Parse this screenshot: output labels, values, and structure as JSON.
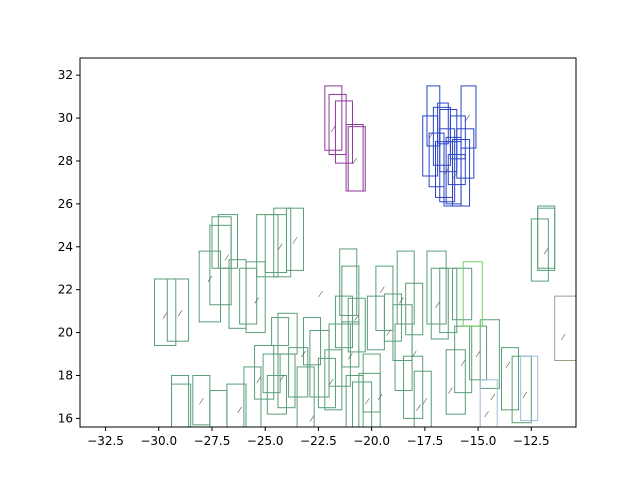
{
  "chart_data": {
    "type": "scatter",
    "title": "",
    "xlabel": "",
    "ylabel": "",
    "xlim": [
      -33.7,
      -10.4
    ],
    "ylim": [
      15.6,
      32.8
    ],
    "grid": false,
    "x_ticks": [
      -32.5,
      -30.0,
      -27.5,
      -25.0,
      -22.5,
      -20.0,
      -17.5,
      -15.0,
      -12.5
    ],
    "x_tick_labels": [
      "−32.5",
      "−30.0",
      "−27.5",
      "−25.0",
      "−22.5",
      "−20.0",
      "−17.5",
      "−15.0",
      "−12.5"
    ],
    "y_ticks": [
      16,
      18,
      20,
      22,
      24,
      26,
      28,
      30,
      32
    ],
    "y_tick_labels": [
      "16",
      "18",
      "20",
      "22",
      "24",
      "26",
      "28",
      "30",
      "32"
    ],
    "colors": {
      "green": "#5a9e78",
      "purple": "#8e3a9a",
      "blue": "#2b45c8",
      "lightblue": "#9fbcdc",
      "lime": "#6fd35a",
      "gray": "#9aa088",
      "stroke": "#555555"
    },
    "series": [
      {
        "color": "green",
        "boxes": [
          [
            -30.2,
            19.4,
            -29.2,
            22.5
          ],
          [
            -29.6,
            19.6,
            -28.6,
            22.5
          ],
          [
            -28.1,
            20.5,
            -27.1,
            23.8
          ],
          [
            -27.6,
            21.3,
            -26.6,
            25.0
          ],
          [
            -27.2,
            23.0,
            -26.3,
            25.5
          ],
          [
            -27.5,
            23.0,
            -26.6,
            25.4
          ],
          [
            -26.7,
            20.2,
            -25.9,
            23.4
          ],
          [
            -26.2,
            20.4,
            -25.4,
            23.0
          ],
          [
            -25.9,
            20.0,
            -25.0,
            23.3
          ],
          [
            -25.4,
            22.6,
            -24.4,
            25.5
          ],
          [
            -25.0,
            22.8,
            -24.0,
            25.5
          ],
          [
            -24.6,
            22.6,
            -23.8,
            25.8
          ],
          [
            -24.0,
            22.9,
            -23.2,
            25.8
          ],
          [
            -24.9,
            16.2,
            -24.0,
            18.0
          ],
          [
            -24.7,
            19.4,
            -23.9,
            20.7
          ],
          [
            -24.4,
            16.5,
            -23.6,
            19.0
          ],
          [
            -24.4,
            19.0,
            -23.5,
            20.9
          ],
          [
            -23.9,
            17.0,
            -23.0,
            19.3
          ],
          [
            -23.5,
            15.6,
            -22.7,
            18.4
          ],
          [
            -23.2,
            18.5,
            -22.4,
            20.7
          ],
          [
            -22.9,
            17.0,
            -22.0,
            20.1
          ],
          [
            -22.5,
            16.5,
            -21.7,
            18.8
          ],
          [
            -22.2,
            16.4,
            -21.4,
            19.2
          ],
          [
            -22.0,
            17.5,
            -21.0,
            20.4
          ],
          [
            -21.7,
            19.3,
            -20.9,
            21.7
          ],
          [
            -21.4,
            18.4,
            -20.6,
            20.5
          ],
          [
            -21.4,
            20.4,
            -20.6,
            23.1
          ],
          [
            -21.5,
            20.8,
            -20.7,
            23.9
          ],
          [
            -21.1,
            19.1,
            -20.3,
            21.6
          ],
          [
            -21.2,
            15.2,
            -20.4,
            18.0
          ],
          [
            -20.9,
            15.0,
            -20.0,
            17.7
          ],
          [
            -20.6,
            15.5,
            -19.6,
            18.1
          ],
          [
            -20.4,
            16.3,
            -19.6,
            19.0
          ],
          [
            -20.2,
            19.2,
            -19.4,
            21.7
          ],
          [
            -19.8,
            20.1,
            -19.0,
            23.1
          ],
          [
            -19.4,
            19.6,
            -18.6,
            21.8
          ],
          [
            -19.0,
            18.7,
            -18.1,
            21.3
          ],
          [
            -18.9,
            17.3,
            -18.1,
            20.4
          ],
          [
            -18.8,
            20.4,
            -18.0,
            23.8
          ],
          [
            -18.5,
            16.0,
            -17.6,
            18.9
          ],
          [
            -18.4,
            19.9,
            -17.6,
            22.3
          ],
          [
            -18.0,
            15.6,
            -17.2,
            18.2
          ],
          [
            -17.4,
            20.4,
            -16.5,
            23.8
          ],
          [
            -17.2,
            19.7,
            -16.4,
            23.0
          ],
          [
            -16.8,
            20.0,
            -16.0,
            23.0
          ],
          [
            -16.5,
            16.2,
            -15.6,
            19.2
          ],
          [
            -16.1,
            17.2,
            -15.3,
            20.3
          ],
          [
            -16.2,
            20.6,
            -15.3,
            23.0
          ],
          [
            -15.4,
            17.8,
            -14.6,
            20.3
          ],
          [
            -14.9,
            17.4,
            -14.0,
            20.6
          ],
          [
            -13.9,
            16.4,
            -13.1,
            19.3
          ],
          [
            -13.4,
            15.8,
            -12.5,
            18.9
          ],
          [
            -12.5,
            22.4,
            -11.7,
            25.3
          ],
          [
            -12.2,
            22.9,
            -11.4,
            25.9
          ],
          [
            -12.2,
            23.0,
            -11.4,
            25.8
          ],
          [
            -28.4,
            15.7,
            -27.6,
            18.0
          ],
          [
            -29.4,
            15.5,
            -28.6,
            18.0
          ],
          [
            -29.4,
            14.9,
            -28.5,
            17.6
          ],
          [
            -27.6,
            15.0,
            -26.8,
            17.3
          ],
          [
            -26.8,
            15.2,
            -25.9,
            17.6
          ],
          [
            -26.0,
            15.6,
            -25.2,
            18.4
          ],
          [
            -25.5,
            16.9,
            -24.6,
            19.4
          ],
          [
            -25.1,
            17.2,
            -24.3,
            19.0
          ]
        ]
      },
      {
        "color": "purple",
        "boxes": [
          [
            -22.2,
            28.5,
            -21.4,
            31.5
          ],
          [
            -22.0,
            28.3,
            -21.2,
            31.1
          ],
          [
            -21.7,
            27.9,
            -20.9,
            30.8
          ],
          [
            -21.2,
            26.6,
            -20.4,
            29.7
          ],
          [
            -21.1,
            26.6,
            -20.3,
            29.6
          ]
        ]
      },
      {
        "color": "blue",
        "boxes": [
          [
            -17.6,
            27.3,
            -16.9,
            30.1
          ],
          [
            -17.4,
            28.7,
            -16.8,
            31.5
          ],
          [
            -16.9,
            28.8,
            -16.4,
            30.7
          ],
          [
            -17.1,
            27.8,
            -16.3,
            30.5
          ],
          [
            -16.8,
            26.1,
            -16.1,
            29.5
          ],
          [
            -16.5,
            26.0,
            -15.8,
            29.1
          ],
          [
            -15.8,
            28.6,
            -15.1,
            31.5
          ],
          [
            -16.8,
            27.5,
            -16.0,
            30.4
          ],
          [
            -16.6,
            25.9,
            -15.8,
            28.9
          ],
          [
            -16.2,
            25.9,
            -15.4,
            29.0
          ],
          [
            -16.4,
            26.9,
            -15.6,
            28.3
          ],
          [
            -16.0,
            27.2,
            -15.2,
            29.5
          ],
          [
            -16.3,
            28.1,
            -15.6,
            30.1
          ],
          [
            -17.0,
            26.3,
            -16.2,
            28.9
          ],
          [
            -17.3,
            26.8,
            -16.6,
            29.3
          ]
        ]
      },
      {
        "color": "lightblue",
        "boxes": [
          [
            -14.9,
            15.0,
            -14.1,
            17.8
          ],
          [
            -13.0,
            15.9,
            -12.2,
            18.9
          ]
        ]
      },
      {
        "color": "lime",
        "boxes": [
          [
            -15.7,
            20.3,
            -14.8,
            23.3
          ]
        ]
      },
      {
        "color": "gray",
        "boxes": [
          [
            -11.4,
            18.7,
            -10.4,
            21.7
          ]
        ]
      }
    ],
    "points": [
      [
        -29.7,
        20.8
      ],
      [
        -29.0,
        20.9
      ],
      [
        -27.6,
        22.5
      ],
      [
        -26.8,
        23.5
      ],
      [
        -25.4,
        21.5
      ],
      [
        -24.3,
        24.0
      ],
      [
        -23.6,
        24.3
      ],
      [
        -24.2,
        17.9
      ],
      [
        -23.2,
        19.0
      ],
      [
        -21.9,
        17.7
      ],
      [
        -21.0,
        18.9
      ],
      [
        -20.7,
        20.7
      ],
      [
        -19.6,
        17.0
      ],
      [
        -19.2,
        20.0
      ],
      [
        -18.6,
        21.5
      ],
      [
        -18.0,
        19.0
      ],
      [
        -17.5,
        16.8
      ],
      [
        -16.9,
        21.3
      ],
      [
        -16.3,
        17.3
      ],
      [
        -15.7,
        18.6
      ],
      [
        -15.0,
        19.0
      ],
      [
        -14.6,
        16.2
      ],
      [
        -14.3,
        17.0
      ],
      [
        -13.6,
        18.5
      ],
      [
        -12.8,
        17.1
      ],
      [
        -11.8,
        23.8
      ],
      [
        -21.8,
        29.5
      ],
      [
        -20.8,
        28.0
      ],
      [
        -17.2,
        29.2
      ],
      [
        -16.5,
        27.5
      ],
      [
        -16.1,
        27.3
      ],
      [
        -15.5,
        30.0
      ],
      [
        -11.0,
        19.8
      ],
      [
        -28.0,
        16.8
      ],
      [
        -26.2,
        16.4
      ],
      [
        -25.3,
        17.8
      ],
      [
        -22.8,
        16.0
      ],
      [
        -20.2,
        16.8
      ],
      [
        -17.8,
        16.5
      ],
      [
        -22.4,
        21.8
      ],
      [
        -19.5,
        22.0
      ]
    ]
  }
}
